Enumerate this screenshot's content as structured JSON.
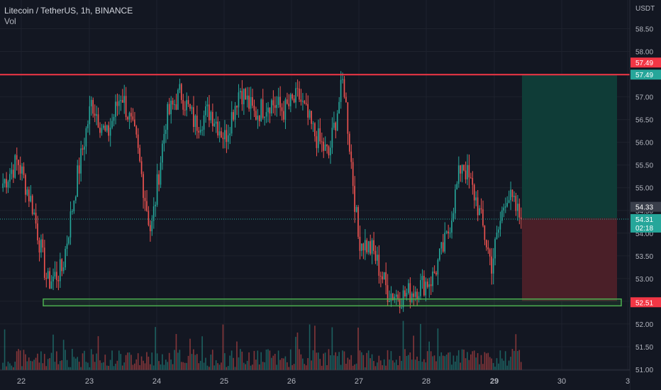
{
  "header": {
    "symbol_line": "Litecoin / TetherUS, 1h, BINANCE",
    "volume_label": "Vol"
  },
  "axis": {
    "currency": "USDT",
    "y_ticks": [
      "58.50",
      "58.00",
      "57.50",
      "57.00",
      "56.50",
      "56.00",
      "55.50",
      "55.00",
      "54.50",
      "54.00",
      "53.50",
      "53.00",
      "52.50",
      "52.00",
      "51.50",
      "51.00"
    ],
    "x_ticks": [
      "22",
      "23",
      "24",
      "25",
      "26",
      "27",
      "28",
      "29",
      "30",
      "3"
    ]
  },
  "price_tags": {
    "resistance": "57.49",
    "target": "57.49",
    "current": "54.31",
    "countdown": "02:18",
    "crosshair": "54.33",
    "stop": "52.51"
  },
  "colors": {
    "background": "#131722",
    "up": "#26a69a",
    "down": "#ef5350",
    "resistance_line": "#f23645",
    "support_box": "#4caf50",
    "profit_zone": "#0f3c37",
    "loss_zone": "#4a1f28"
  },
  "chart_data": {
    "type": "candlestick",
    "timeframe": "1h",
    "ylim": [
      51.0,
      58.75
    ],
    "resistance_level": 57.49,
    "support_zone": [
      52.4,
      52.55
    ],
    "position": {
      "side": "long",
      "entry": 54.33,
      "target": 57.49,
      "stop": 52.51
    },
    "current_price": 54.31,
    "anchors": [
      {
        "label": "22",
        "close": 55.1
      },
      {
        "label": "22",
        "close": 55.6
      },
      {
        "label": "22",
        "close": 54.6
      },
      {
        "label": "22",
        "close": 52.9
      },
      {
        "label": "22",
        "close": 53.2
      },
      {
        "label": "22",
        "close": 55.2
      },
      {
        "label": "23",
        "close": 56.9
      },
      {
        "label": "23",
        "close": 56.1
      },
      {
        "label": "23",
        "close": 57.1
      },
      {
        "label": "23",
        "close": 56.0
      },
      {
        "label": "23",
        "close": 54.0
      },
      {
        "label": "23",
        "close": 56.5
      },
      {
        "label": "24",
        "close": 57.1
      },
      {
        "label": "24",
        "close": 56.4
      },
      {
        "label": "24",
        "close": 56.7
      },
      {
        "label": "24",
        "close": 56.1
      },
      {
        "label": "25",
        "close": 57.2
      },
      {
        "label": "25",
        "close": 56.6
      },
      {
        "label": "25",
        "close": 56.9
      },
      {
        "label": "25",
        "close": 56.7
      },
      {
        "label": "25",
        "close": 57.0
      },
      {
        "label": "26",
        "close": 56.2
      },
      {
        "label": "26",
        "close": 55.7
      },
      {
        "label": "26",
        "close": 57.4
      },
      {
        "label": "26",
        "close": 53.9
      },
      {
        "label": "27",
        "close": 53.6
      },
      {
        "label": "27",
        "close": 52.7
      },
      {
        "label": "27",
        "close": 52.6
      },
      {
        "label": "28",
        "close": 52.8
      },
      {
        "label": "28",
        "close": 53.0
      },
      {
        "label": "28",
        "close": 53.9
      },
      {
        "label": "28",
        "close": 55.6
      },
      {
        "label": "29",
        "close": 54.7
      },
      {
        "label": "29",
        "close": 53.3
      },
      {
        "label": "29",
        "close": 54.9
      },
      {
        "label": "29",
        "close": 54.31
      }
    ]
  }
}
